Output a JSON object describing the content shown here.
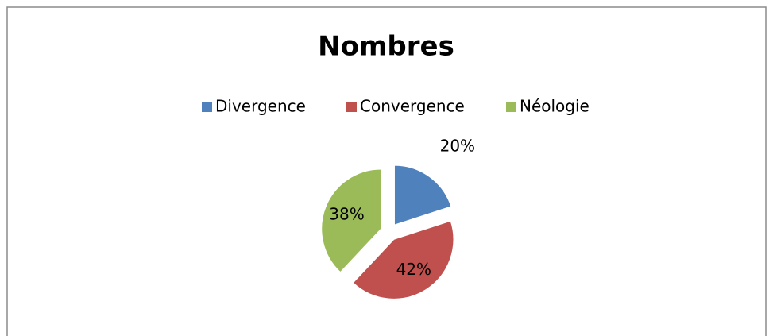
{
  "chart_data": {
    "type": "pie",
    "title": "Nombres",
    "categories": [
      "Divergence",
      "Convergence",
      "Néologie"
    ],
    "values": [
      20,
      42,
      38
    ],
    "value_labels": [
      "20%",
      "42%",
      "38%"
    ],
    "colors": [
      "#4f81bd",
      "#c0504d",
      "#9bbb59"
    ],
    "legend": "top"
  }
}
